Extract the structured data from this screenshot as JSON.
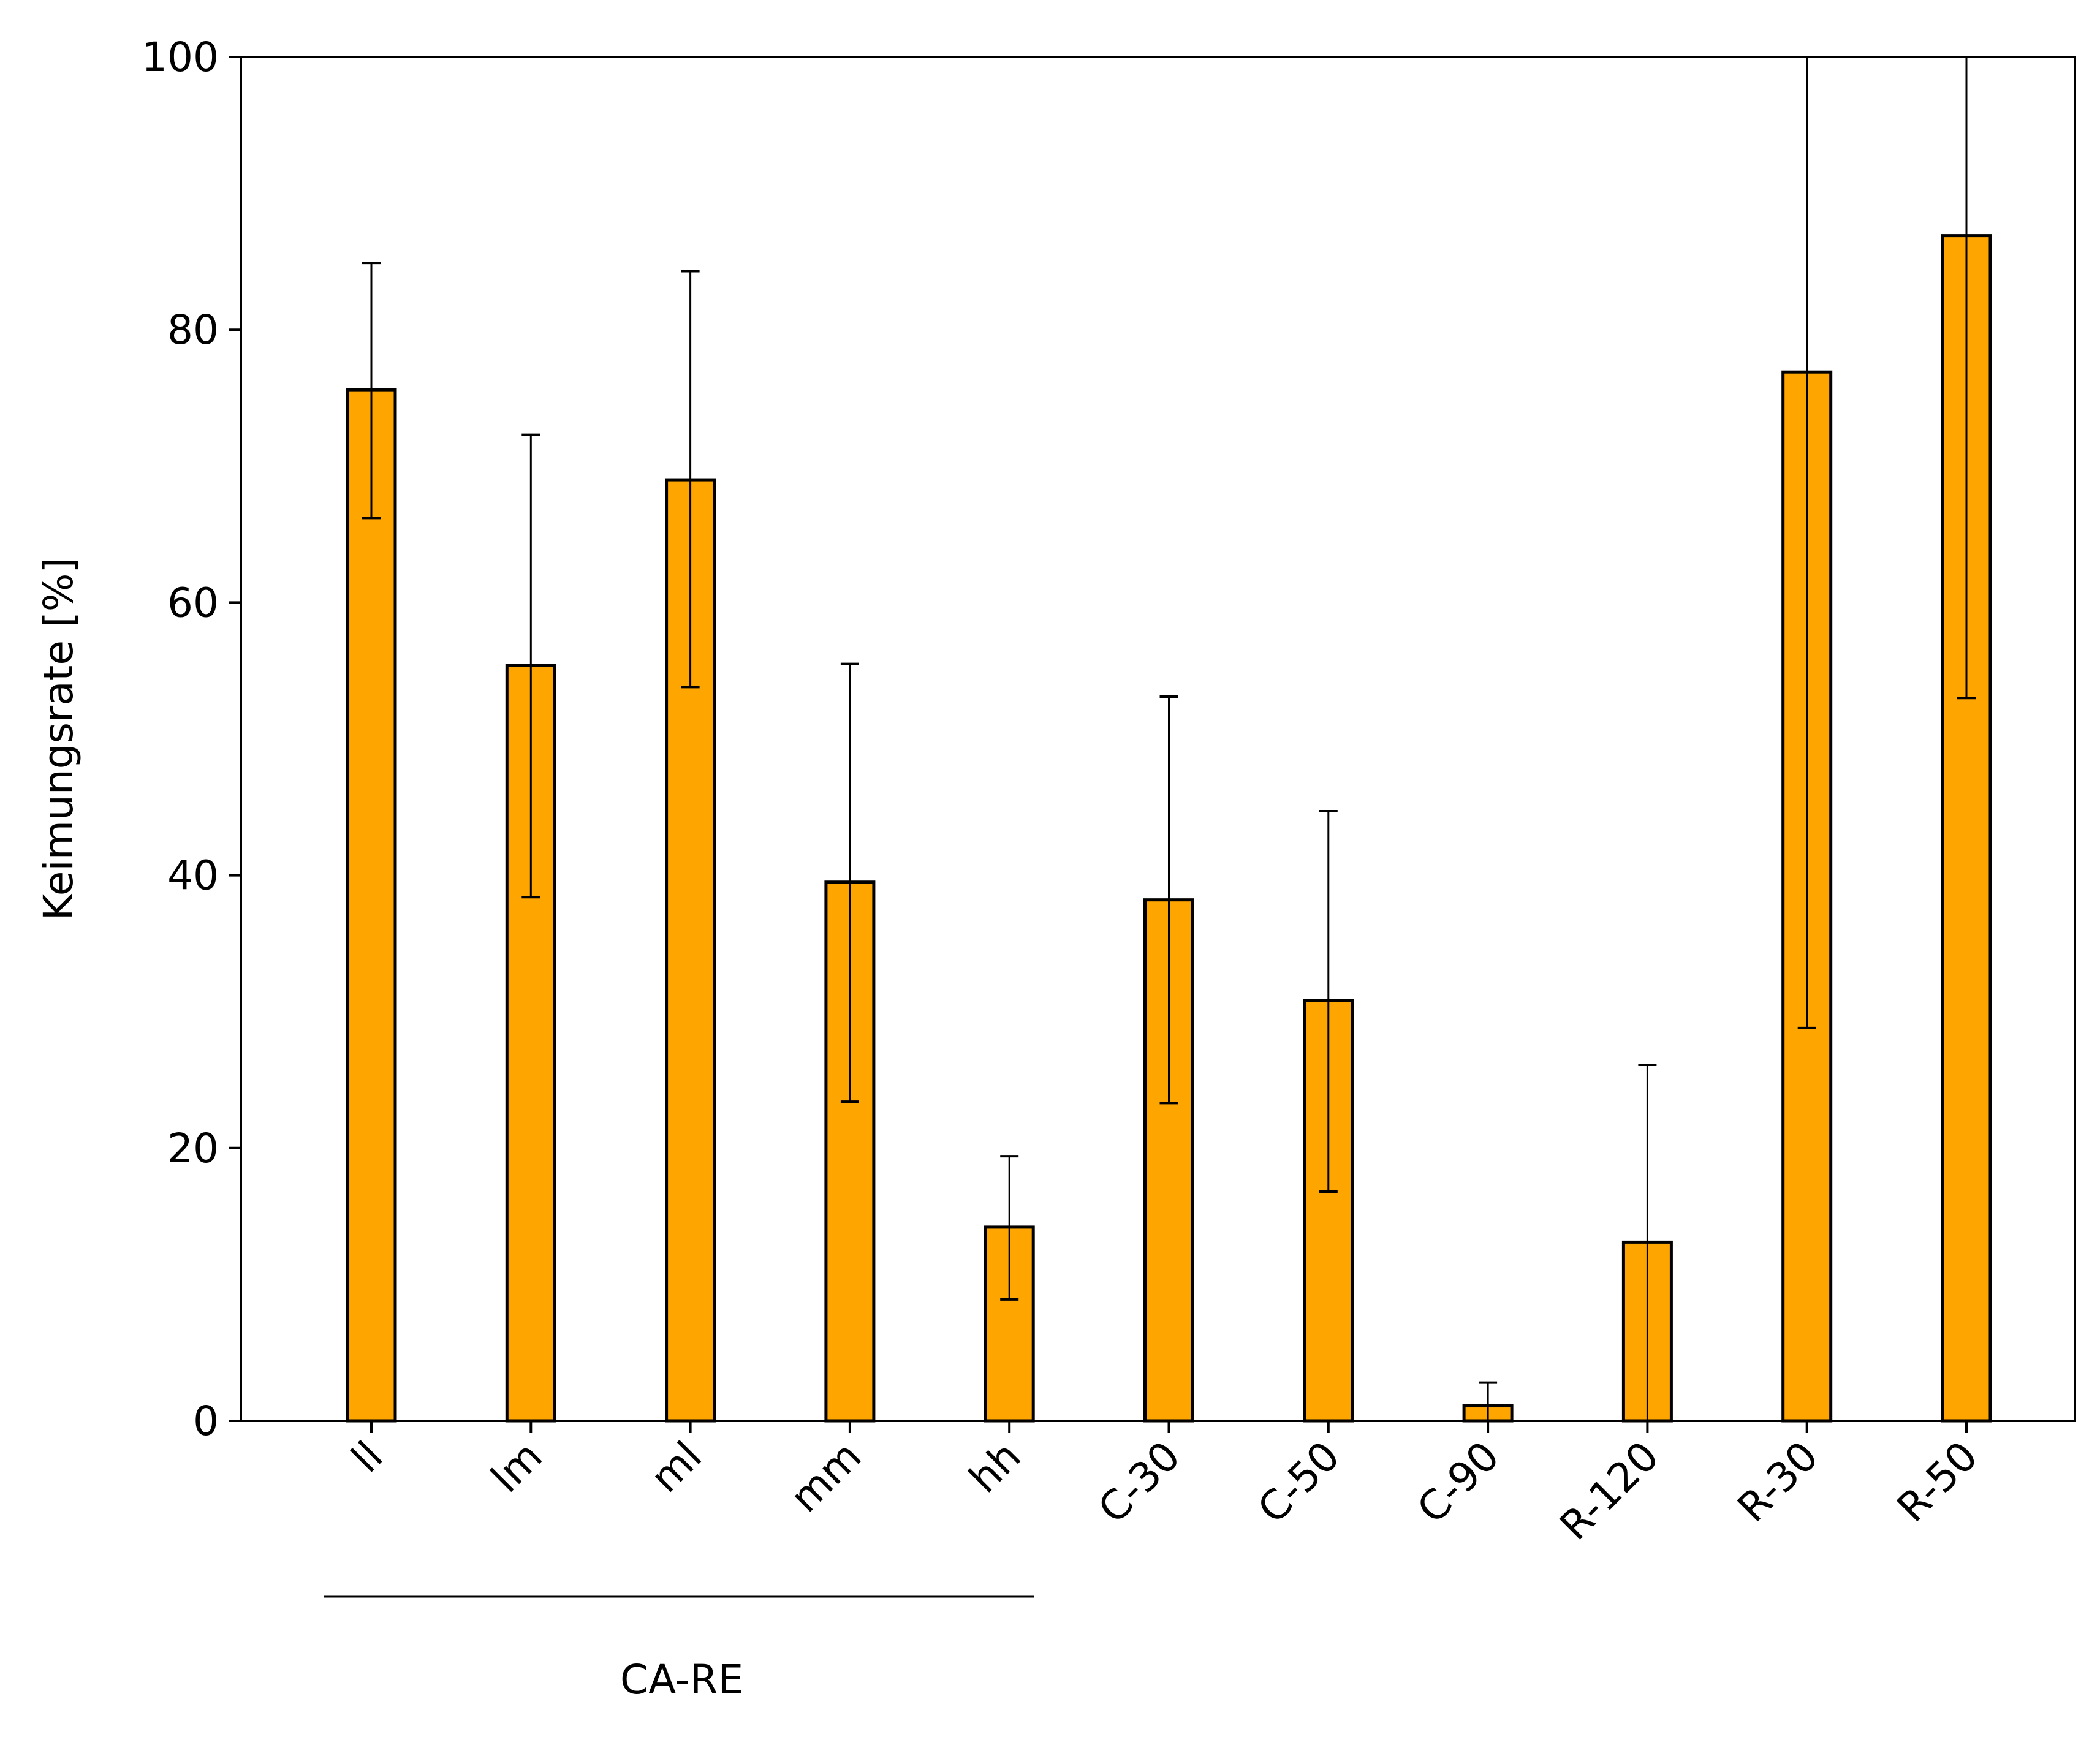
{
  "chart_data": {
    "type": "bar",
    "title": "",
    "xlabel": "",
    "ylabel": "Keimungsrate [%]",
    "ylim": [
      0,
      100
    ],
    "yticks": [
      0,
      20,
      40,
      60,
      80,
      100
    ],
    "grid": false,
    "categories": [
      "ll",
      "lm",
      "ml",
      "mm",
      "hh",
      "C-30",
      "C-50",
      "C-90",
      "R-120",
      "R-30",
      "R-50"
    ],
    "series": [
      {
        "values": [
          75.6,
          55.4,
          69.0,
          39.5,
          14.2,
          38.2,
          30.8,
          1.1,
          13.1,
          76.9,
          86.9
        ],
        "error_low": [
          66.2,
          38.4,
          53.8,
          23.4,
          8.9,
          23.3,
          16.8,
          0.0,
          0.0,
          28.8,
          53.0
        ],
        "error_high": [
          84.9,
          72.3,
          84.3,
          55.5,
          19.4,
          53.1,
          44.7,
          2.8,
          26.1,
          100.0,
          100.0
        ]
      }
    ],
    "group_annotation": {
      "label": "CA-RE",
      "categories": [
        "ll",
        "lm",
        "ml",
        "mm",
        "hh"
      ]
    },
    "colors": {
      "bar_fill": "#FFA500",
      "bar_edge": "#000000"
    }
  }
}
